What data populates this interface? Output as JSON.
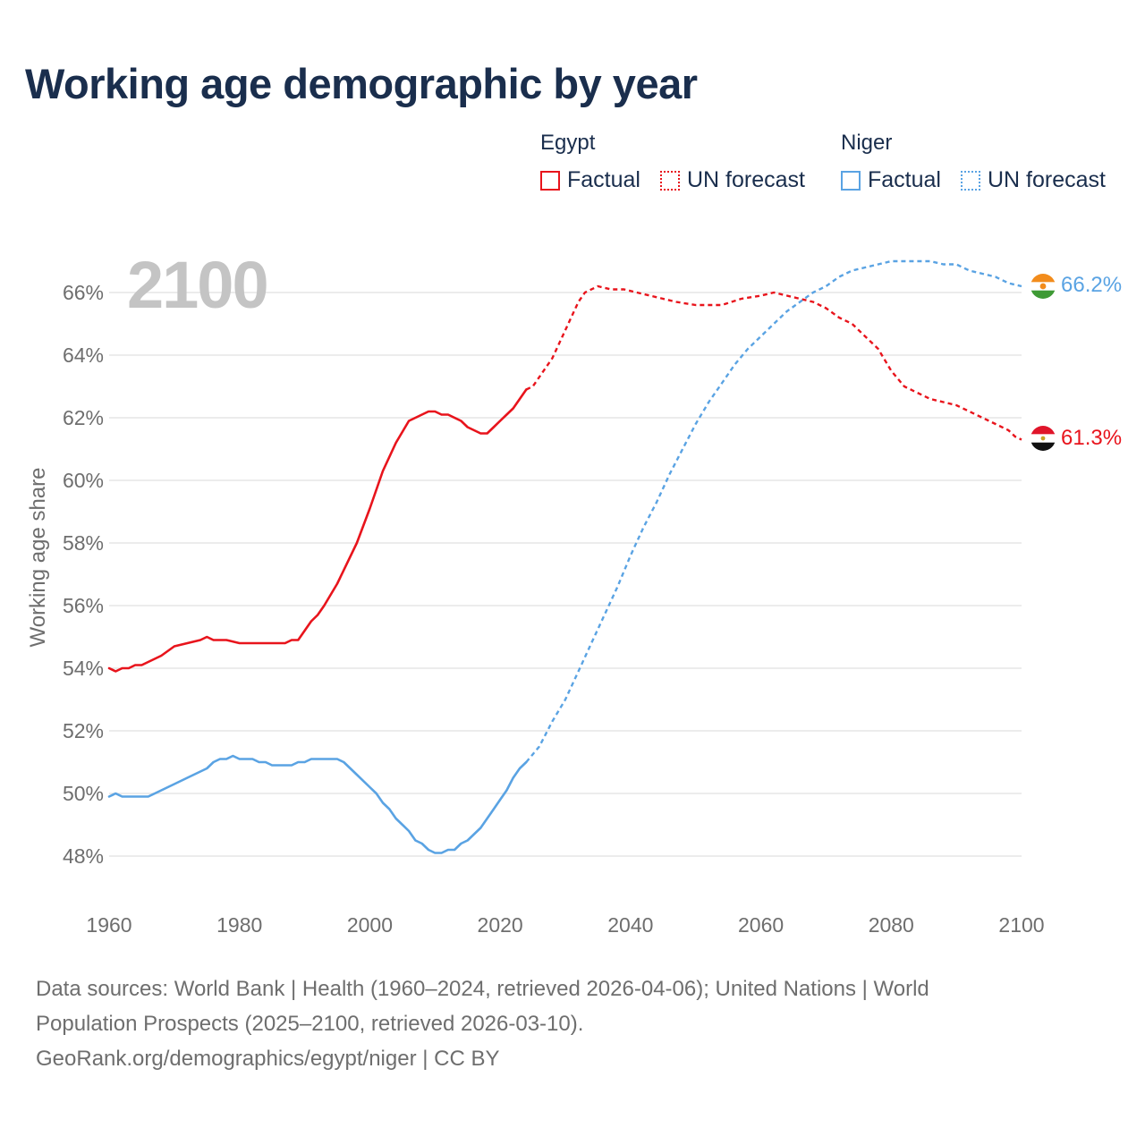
{
  "title": "Working age demographic by year",
  "year_label": "2100",
  "legend": {
    "egypt": {
      "name": "Egypt",
      "factual": "Factual",
      "forecast": "UN forecast",
      "color": "#e8141c"
    },
    "niger": {
      "name": "Niger",
      "factual": "Factual",
      "forecast": "UN forecast",
      "color": "#5aa3e3"
    }
  },
  "end_labels": {
    "egypt": "61.3%",
    "niger": "66.2%"
  },
  "footer": {
    "line1": "Data sources: World Bank | Health (1960–2024, retrieved 2026-04-06); United Nations | World",
    "line2": "Population Prospects (2025–2100, retrieved 2026-03-10).",
    "line3": "GeoRank.org/demographics/egypt/niger | CC BY"
  },
  "chart_data": {
    "type": "line",
    "title": "Working age demographic by year",
    "xlabel": "",
    "ylabel": "Working age share",
    "xlim": [
      1960,
      2100
    ],
    "ylim": [
      47,
      67
    ],
    "x_ticks": [
      1960,
      1980,
      2000,
      2020,
      2040,
      2060,
      2080,
      2100
    ],
    "y_ticks": [
      48,
      50,
      52,
      54,
      56,
      58,
      60,
      62,
      64,
      66
    ],
    "y_tick_labels": [
      "48%",
      "50%",
      "52%",
      "54%",
      "56%",
      "58%",
      "60%",
      "62%",
      "64%",
      "66%"
    ],
    "grid": true,
    "factual_range": [
      1960,
      2024
    ],
    "forecast_range": [
      2024,
      2100
    ],
    "series": [
      {
        "name": "Egypt",
        "color": "#e8141c",
        "points": [
          [
            1960,
            54.0
          ],
          [
            1961,
            53.9
          ],
          [
            1962,
            54.0
          ],
          [
            1963,
            54.0
          ],
          [
            1964,
            54.1
          ],
          [
            1965,
            54.1
          ],
          [
            1966,
            54.2
          ],
          [
            1968,
            54.4
          ],
          [
            1970,
            54.7
          ],
          [
            1972,
            54.8
          ],
          [
            1974,
            54.9
          ],
          [
            1975,
            55.0
          ],
          [
            1976,
            54.9
          ],
          [
            1978,
            54.9
          ],
          [
            1980,
            54.8
          ],
          [
            1985,
            54.8
          ],
          [
            1987,
            54.8
          ],
          [
            1988,
            54.9
          ],
          [
            1989,
            54.9
          ],
          [
            1990,
            55.2
          ],
          [
            1991,
            55.5
          ],
          [
            1992,
            55.7
          ],
          [
            1993,
            56.0
          ],
          [
            1995,
            56.7
          ],
          [
            1998,
            58.0
          ],
          [
            2000,
            59.1
          ],
          [
            2002,
            60.3
          ],
          [
            2004,
            61.2
          ],
          [
            2006,
            61.9
          ],
          [
            2008,
            62.1
          ],
          [
            2009,
            62.2
          ],
          [
            2010,
            62.2
          ],
          [
            2011,
            62.1
          ],
          [
            2012,
            62.1
          ],
          [
            2014,
            61.9
          ],
          [
            2015,
            61.7
          ],
          [
            2016,
            61.6
          ],
          [
            2017,
            61.5
          ],
          [
            2018,
            61.5
          ],
          [
            2019,
            61.7
          ],
          [
            2020,
            61.9
          ],
          [
            2021,
            62.1
          ],
          [
            2022,
            62.3
          ],
          [
            2023,
            62.6
          ],
          [
            2024,
            62.9
          ],
          [
            2025,
            63.0
          ],
          [
            2026,
            63.3
          ],
          [
            2028,
            63.9
          ],
          [
            2030,
            64.8
          ],
          [
            2032,
            65.7
          ],
          [
            2033,
            66.0
          ],
          [
            2035,
            66.2
          ],
          [
            2037,
            66.1
          ],
          [
            2039,
            66.1
          ],
          [
            2041,
            66.0
          ],
          [
            2043,
            65.9
          ],
          [
            2045,
            65.8
          ],
          [
            2047,
            65.7
          ],
          [
            2050,
            65.6
          ],
          [
            2054,
            65.6
          ],
          [
            2057,
            65.8
          ],
          [
            2060,
            65.9
          ],
          [
            2062,
            66.0
          ],
          [
            2064,
            65.9
          ],
          [
            2066,
            65.8
          ],
          [
            2068,
            65.7
          ],
          [
            2070,
            65.5
          ],
          [
            2072,
            65.2
          ],
          [
            2074,
            65.0
          ],
          [
            2076,
            64.6
          ],
          [
            2078,
            64.2
          ],
          [
            2080,
            63.5
          ],
          [
            2082,
            63.0
          ],
          [
            2084,
            62.8
          ],
          [
            2086,
            62.6
          ],
          [
            2088,
            62.5
          ],
          [
            2090,
            62.4
          ],
          [
            2092,
            62.2
          ],
          [
            2094,
            62.0
          ],
          [
            2096,
            61.8
          ],
          [
            2098,
            61.6
          ],
          [
            2099,
            61.4
          ],
          [
            2100,
            61.3
          ]
        ]
      },
      {
        "name": "Niger",
        "color": "#5aa3e3",
        "points": [
          [
            1960,
            49.9
          ],
          [
            1961,
            50.0
          ],
          [
            1962,
            49.9
          ],
          [
            1966,
            49.9
          ],
          [
            1968,
            50.1
          ],
          [
            1970,
            50.3
          ],
          [
            1972,
            50.5
          ],
          [
            1974,
            50.7
          ],
          [
            1975,
            50.8
          ],
          [
            1976,
            51.0
          ],
          [
            1977,
            51.1
          ],
          [
            1978,
            51.1
          ],
          [
            1979,
            51.2
          ],
          [
            1980,
            51.1
          ],
          [
            1982,
            51.1
          ],
          [
            1983,
            51.0
          ],
          [
            1984,
            51.0
          ],
          [
            1985,
            50.9
          ],
          [
            1988,
            50.9
          ],
          [
            1989,
            51.0
          ],
          [
            1990,
            51.0
          ],
          [
            1991,
            51.1
          ],
          [
            1995,
            51.1
          ],
          [
            1996,
            51.0
          ],
          [
            1998,
            50.6
          ],
          [
            2000,
            50.2
          ],
          [
            2001,
            50.0
          ],
          [
            2002,
            49.7
          ],
          [
            2003,
            49.5
          ],
          [
            2004,
            49.2
          ],
          [
            2005,
            49.0
          ],
          [
            2006,
            48.8
          ],
          [
            2007,
            48.5
          ],
          [
            2008,
            48.4
          ],
          [
            2009,
            48.2
          ],
          [
            2010,
            48.1
          ],
          [
            2011,
            48.1
          ],
          [
            2012,
            48.2
          ],
          [
            2013,
            48.2
          ],
          [
            2014,
            48.4
          ],
          [
            2015,
            48.5
          ],
          [
            2016,
            48.7
          ],
          [
            2017,
            48.9
          ],
          [
            2018,
            49.2
          ],
          [
            2019,
            49.5
          ],
          [
            2020,
            49.8
          ],
          [
            2021,
            50.1
          ],
          [
            2022,
            50.5
          ],
          [
            2023,
            50.8
          ],
          [
            2024,
            51.0
          ],
          [
            2026,
            51.5
          ],
          [
            2028,
            52.3
          ],
          [
            2030,
            53.0
          ],
          [
            2032,
            53.9
          ],
          [
            2034,
            54.8
          ],
          [
            2036,
            55.7
          ],
          [
            2038,
            56.6
          ],
          [
            2040,
            57.6
          ],
          [
            2042,
            58.5
          ],
          [
            2044,
            59.3
          ],
          [
            2046,
            60.2
          ],
          [
            2048,
            61.0
          ],
          [
            2050,
            61.8
          ],
          [
            2052,
            62.5
          ],
          [
            2054,
            63.1
          ],
          [
            2056,
            63.7
          ],
          [
            2058,
            64.2
          ],
          [
            2060,
            64.6
          ],
          [
            2062,
            65.0
          ],
          [
            2064,
            65.4
          ],
          [
            2066,
            65.7
          ],
          [
            2068,
            66.0
          ],
          [
            2070,
            66.2
          ],
          [
            2072,
            66.5
          ],
          [
            2074,
            66.7
          ],
          [
            2076,
            66.8
          ],
          [
            2078,
            66.9
          ],
          [
            2080,
            67.0
          ],
          [
            2084,
            67.0
          ],
          [
            2086,
            67.0
          ],
          [
            2088,
            66.9
          ],
          [
            2090,
            66.9
          ],
          [
            2092,
            66.7
          ],
          [
            2094,
            66.6
          ],
          [
            2096,
            66.5
          ],
          [
            2098,
            66.3
          ],
          [
            2100,
            66.2
          ]
        ]
      }
    ]
  }
}
